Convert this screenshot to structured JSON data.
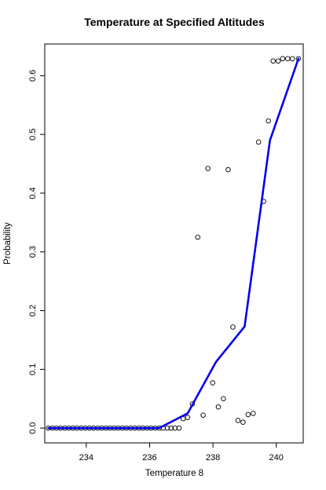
{
  "chart_data": {
    "type": "scatter",
    "title": "Temperature at Specified Altitudes",
    "xlabel": "Temperature 8",
    "ylabel": "Probability",
    "xlim": [
      232.69,
      240.85
    ],
    "ylim": [
      -0.0252,
      0.654
    ],
    "x_ticks": [
      234,
      236,
      238,
      240
    ],
    "y_ticks": [
      0.0,
      0.1,
      0.2,
      0.3,
      0.4,
      0.5,
      0.6
    ],
    "grid": false,
    "legend": "none",
    "colors": {
      "points": "#000000",
      "line": "#0000ee"
    },
    "series": [
      {
        "kind": "points",
        "marker": "open-circle",
        "x": [
          232.8,
          232.93,
          233.06,
          233.19,
          233.32,
          233.45,
          233.58,
          233.71,
          233.84,
          233.97,
          234.1,
          234.23,
          234.36,
          234.49,
          234.62,
          234.75,
          234.88,
          235.01,
          235.14,
          235.27,
          235.4,
          235.53,
          235.66,
          235.79,
          235.92,
          236.05,
          236.18,
          236.31,
          236.43,
          236.56,
          236.68,
          236.8,
          236.93,
          237.06,
          237.2,
          237.35,
          237.52,
          237.69,
          237.84,
          237.99,
          238.17,
          238.33,
          238.48,
          238.63,
          238.79,
          238.95,
          239.11,
          239.27,
          239.44,
          239.6,
          239.75,
          239.9,
          240.06,
          240.2,
          240.36,
          240.51,
          240.7
        ],
        "y": [
          0.0,
          0.0,
          0.0,
          0.0,
          0.0,
          0.0,
          0.0,
          0.0,
          0.0,
          0.0,
          0.0,
          0.0,
          0.0,
          0.0,
          0.0,
          0.0,
          0.0,
          0.0,
          0.0,
          0.0,
          0.0,
          0.0,
          0.0,
          0.0,
          0.0,
          0.0,
          0.0,
          0.0,
          0.0,
          0.0,
          0.0,
          0.0,
          0.0,
          0.016,
          0.018,
          0.041,
          0.325,
          0.022,
          0.442,
          0.077,
          0.036,
          0.05,
          0.44,
          0.172,
          0.013,
          0.01,
          0.023,
          0.025,
          0.487,
          0.386,
          0.523,
          0.625,
          0.625,
          0.629,
          0.629,
          0.629,
          0.629
        ]
      },
      {
        "kind": "line",
        "x": [
          232.8,
          233.0,
          233.5,
          234.0,
          234.5,
          235.0,
          235.5,
          236.0,
          236.3,
          237.2,
          238.1,
          239.0,
          239.8,
          240.7
        ],
        "y": [
          0.0,
          0.0,
          0.0,
          0.0,
          0.0,
          0.0,
          0.0,
          0.0,
          0.0,
          0.025,
          0.113,
          0.173,
          0.49,
          0.629
        ]
      }
    ]
  }
}
